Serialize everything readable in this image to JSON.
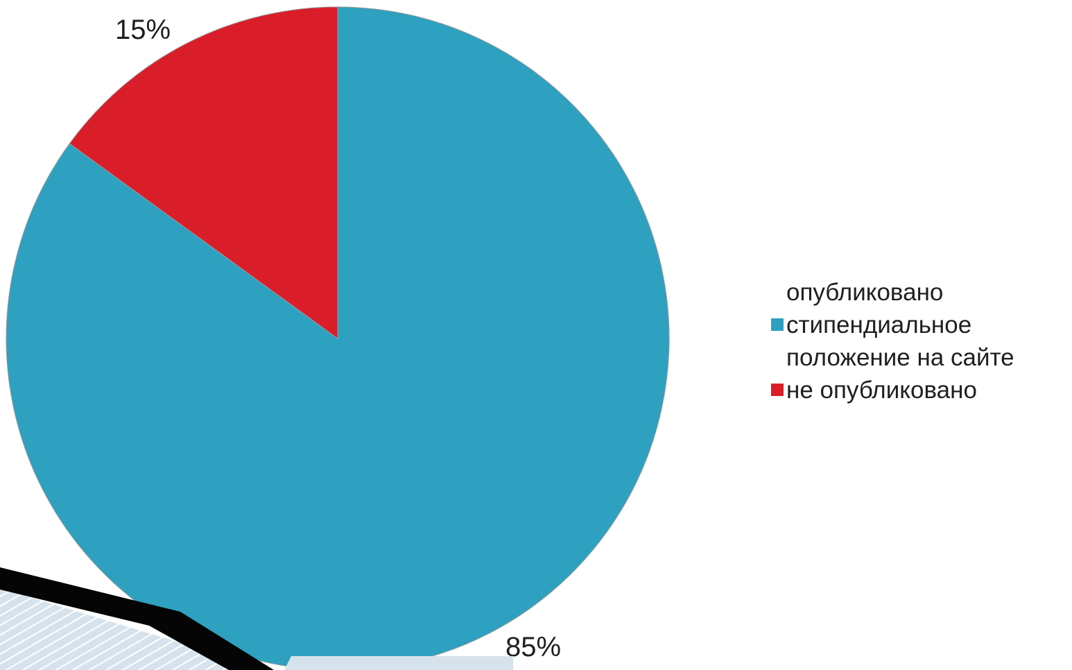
{
  "chart_data": {
    "type": "pie",
    "title": "",
    "legend_position": "right",
    "slices": [
      {
        "label": "опубликовано стипендиальное положение на сайте",
        "value": 85,
        "value_label": "85%",
        "color": "#2ea1c0"
      },
      {
        "label": "не опубликовано",
        "value": 15,
        "value_label": "15%",
        "color": "#d91e2a"
      }
    ]
  },
  "legend": {
    "items": [
      {
        "lines": [
          "опубликовано",
          "стипендиальное",
          "положение на сайте"
        ],
        "color": "#2ea1c0"
      },
      {
        "lines": [
          "не опубликовано"
        ],
        "color": "#d91e2a"
      }
    ]
  }
}
